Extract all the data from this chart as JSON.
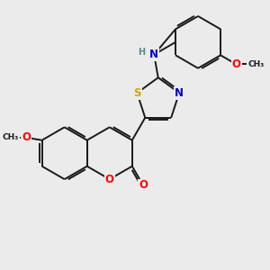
{
  "background_color": "#ebebeb",
  "bond_color": "#1a1a1a",
  "atom_colors": {
    "O": "#ff0000",
    "N": "#0000cc",
    "S": "#ccaa00",
    "H": "#5a8a8a",
    "C": "#1a1a1a"
  },
  "figsize": [
    3.0,
    3.0
  ],
  "dpi": 100
}
